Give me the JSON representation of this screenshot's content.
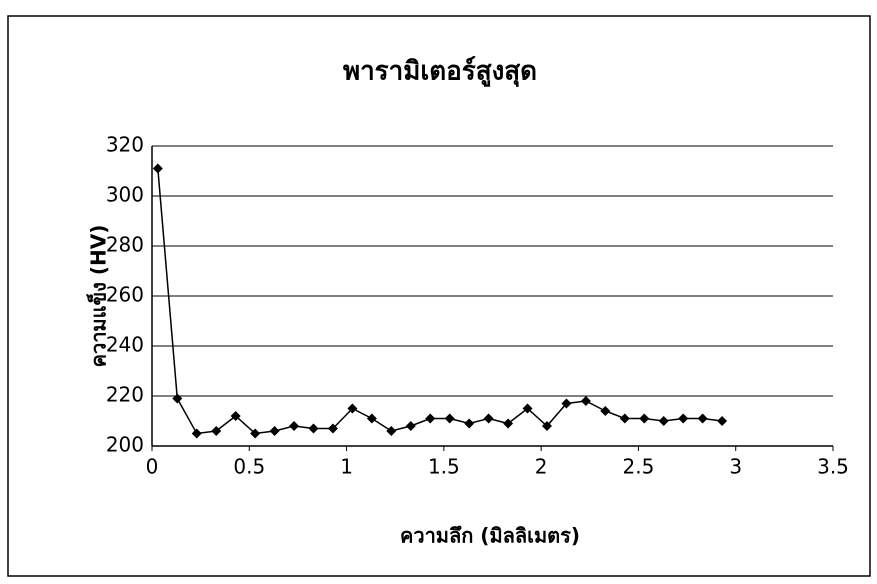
{
  "chart_data": {
    "type": "line",
    "title": "พารามิเตอร์สูงสุด",
    "x_label": "ความลึก (มิลลิเมตร)",
    "y_label": "ความแข็ง (HV)",
    "x": [
      0.03,
      0.13,
      0.23,
      0.33,
      0.43,
      0.53,
      0.63,
      0.73,
      0.83,
      0.93,
      1.03,
      1.13,
      1.23,
      1.33,
      1.43,
      1.53,
      1.63,
      1.73,
      1.83,
      1.93,
      2.03,
      2.13,
      2.23,
      2.33,
      2.43,
      2.53,
      2.63,
      2.73,
      2.83,
      2.93
    ],
    "series": [
      {
        "name": "HV",
        "color": "#000000",
        "values": [
          311,
          219,
          205,
          206,
          212,
          205,
          206,
          208,
          207,
          207,
          215,
          211,
          206,
          208,
          211,
          211,
          209,
          211,
          209,
          215,
          208,
          217,
          218,
          214,
          211,
          211,
          210,
          211,
          211,
          210
        ]
      }
    ],
    "xlim": [
      0,
      3.5
    ],
    "xticks": [
      0,
      0.5,
      1,
      1.5,
      2,
      2.5,
      3,
      3.5
    ],
    "ylim": [
      200,
      320
    ],
    "yticks": [
      200,
      220,
      240,
      260,
      280,
      300,
      320
    ],
    "grid": true
  }
}
